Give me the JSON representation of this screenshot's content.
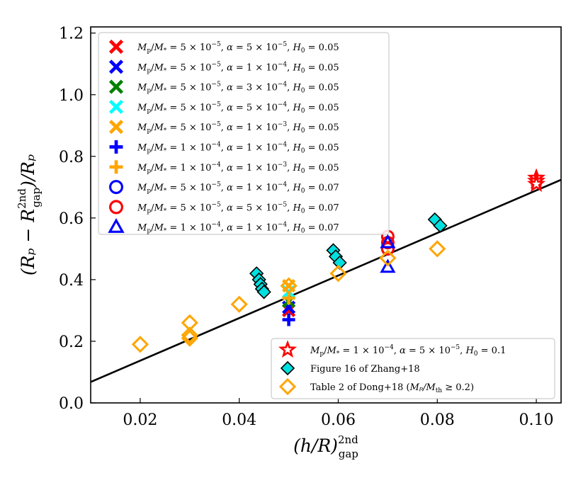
{
  "chart_data": {
    "type": "scatter",
    "xlabel": "(h/R)²ⁿᵈ gap",
    "xlabel_main": "(h/R)",
    "xlabel_sup": "2nd",
    "xlabel_sub": "gap",
    "ylabel_main": "(Rₚ − R",
    "ylabel_sup": "2nd",
    "ylabel_sub": "gap",
    "ylabel_tail": ")/Rₚ",
    "xlim": [
      0.01,
      0.105
    ],
    "ylim": [
      0.0,
      1.22
    ],
    "xticks": [
      "0.02",
      "0.04",
      "0.06",
      "0.08",
      "0.10"
    ],
    "xtick_values": [
      0.02,
      0.04,
      0.06,
      0.08,
      0.1
    ],
    "yticks": [
      "0.0",
      "0.2",
      "0.4",
      "0.6",
      "0.8",
      "1.0",
      "1.2"
    ],
    "ytick_values": [
      0.0,
      0.2,
      0.4,
      0.6,
      0.8,
      1.0,
      1.2
    ],
    "fit_line": {
      "x": [
        0.01,
        0.105
      ],
      "y": [
        0.068,
        0.724
      ]
    },
    "series": [
      {
        "name": "Mp/M* = 5×10⁻⁵, α = 5×10⁻⁵, H0 = 0.05",
        "marker": "x",
        "color": "#ff0000",
        "x": [
          0.05
        ],
        "y": [
          0.3
        ]
      },
      {
        "name": "Mp/M* = 5×10⁻⁵, α = 1×10⁻⁴, H0 = 0.05",
        "marker": "x",
        "color": "#0000ff",
        "x": [
          0.05
        ],
        "y": [
          0.31
        ]
      },
      {
        "name": "Mp/M* = 5×10⁻⁵, α = 3×10⁻⁴, H0 = 0.05",
        "marker": "x",
        "color": "#008000",
        "x": [
          0.05
        ],
        "y": [
          0.33
        ]
      },
      {
        "name": "Mp/M* = 5×10⁻⁵, α = 5×10⁻⁴, H0 = 0.05",
        "marker": "x",
        "color": "#00ffff",
        "x": [
          0.05
        ],
        "y": [
          0.36
        ]
      },
      {
        "name": "Mp/M* = 5×10⁻⁵, α = 1×10⁻³, H0 = 0.05",
        "marker": "x",
        "color": "#ffa500",
        "x": [
          0.05
        ],
        "y": [
          0.38
        ]
      },
      {
        "name": "Mp/M* = 1×10⁻⁴, α = 1×10⁻⁴, H0 = 0.05",
        "marker": "plus",
        "color": "#0000ff",
        "x": [
          0.05
        ],
        "y": [
          0.27
        ]
      },
      {
        "name": "Mp/M* = 1×10⁻⁴, α = 1×10⁻³, H0 = 0.05",
        "marker": "plus",
        "color": "#ffa500",
        "x": [
          0.05
        ],
        "y": [
          0.34
        ]
      },
      {
        "name": "Mp/M* = 5×10⁻⁵, α = 1×10⁻⁴, H0 = 0.07",
        "marker": "circle",
        "color": "#0000ff",
        "x": [
          0.07
        ],
        "y": [
          0.5
        ]
      },
      {
        "name": "Mp/M* = 5×10⁻⁵, α = 5×10⁻⁵, H0 = 0.07",
        "marker": "circle",
        "color": "#ff0000",
        "x": [
          0.07,
          0.07,
          0.07
        ],
        "y": [
          0.54,
          0.52,
          0.5
        ]
      },
      {
        "name": "Mp/M* = 1×10⁻⁴, α = 1×10⁻⁴, H0 = 0.07",
        "marker": "triangle",
        "color": "#0000ff",
        "x": [
          0.07,
          0.07
        ],
        "y": [
          0.44,
          0.52
        ]
      },
      {
        "name": "Mp/M* = 1×10⁻⁴, α = 5×10⁻⁵, H0 = 0.1",
        "marker": "star",
        "color": "#ff0000",
        "x": [
          0.1,
          0.1,
          0.1
        ],
        "y": [
          0.73,
          0.72,
          0.71
        ]
      },
      {
        "name": "Figure 16 of Zhang+18",
        "marker": "diamond-filled",
        "color": "#00e0e0",
        "x": [
          0.0435,
          0.044,
          0.0443,
          0.0446,
          0.045,
          0.059,
          0.0595,
          0.0603,
          0.0795,
          0.0806
        ],
        "y": [
          0.42,
          0.4,
          0.385,
          0.37,
          0.36,
          0.495,
          0.475,
          0.455,
          0.595,
          0.575
        ]
      },
      {
        "name": "Table 2 of Dong+18 (Mp/Mth ≥ 0.2)",
        "marker": "diamond-open",
        "color": "#ffa500",
        "x": [
          0.02,
          0.03,
          0.03,
          0.03,
          0.04,
          0.05,
          0.06,
          0.07,
          0.08
        ],
        "y": [
          0.19,
          0.26,
          0.22,
          0.21,
          0.32,
          0.38,
          0.42,
          0.47,
          0.5
        ]
      }
    ],
    "legend_upper": [
      {
        "marker": "x",
        "color": "#ff0000",
        "mp": "5 × 10",
        "mp_exp": "−5",
        "alpha": "5 × 10",
        "alpha_exp": "−5",
        "h0": "0.05"
      },
      {
        "marker": "x",
        "color": "#0000ff",
        "mp": "5 × 10",
        "mp_exp": "−5",
        "alpha": "1 × 10",
        "alpha_exp": "−4",
        "h0": "0.05"
      },
      {
        "marker": "x",
        "color": "#008000",
        "mp": "5 × 10",
        "mp_exp": "−5",
        "alpha": "3 × 10",
        "alpha_exp": "−4",
        "h0": "0.05"
      },
      {
        "marker": "x",
        "color": "#00ffff",
        "mp": "5 × 10",
        "mp_exp": "−5",
        "alpha": "5 × 10",
        "alpha_exp": "−4",
        "h0": "0.05"
      },
      {
        "marker": "x",
        "color": "#ffa500",
        "mp": "5 × 10",
        "mp_exp": "−5",
        "alpha": "1 × 10",
        "alpha_exp": "−3",
        "h0": "0.05"
      },
      {
        "marker": "plus",
        "color": "#0000ff",
        "mp": "1 × 10",
        "mp_exp": "−4",
        "alpha": "1 × 10",
        "alpha_exp": "−4",
        "h0": "0.05"
      },
      {
        "marker": "plus",
        "color": "#ffa500",
        "mp": "1 × 10",
        "mp_exp": "−4",
        "alpha": "1 × 10",
        "alpha_exp": "−3",
        "h0": "0.05"
      },
      {
        "marker": "circle",
        "color": "#0000ff",
        "mp": "5 × 10",
        "mp_exp": "−5",
        "alpha": "1 × 10",
        "alpha_exp": "−4",
        "h0": "0.07"
      },
      {
        "marker": "circle",
        "color": "#ff0000",
        "mp": "5 × 10",
        "mp_exp": "−5",
        "alpha": "5 × 10",
        "alpha_exp": "−5",
        "h0": "0.07"
      },
      {
        "marker": "triangle",
        "color": "#0000ff",
        "mp": "1 × 10",
        "mp_exp": "−4",
        "alpha": "1 × 10",
        "alpha_exp": "−4",
        "h0": "0.07"
      }
    ],
    "legend_lower": [
      {
        "marker": "star",
        "color": "#ff0000",
        "kind": "param",
        "mp": "1 × 10",
        "mp_exp": "−4",
        "alpha": "5 × 10",
        "alpha_exp": "−5",
        "h0": "0.1"
      },
      {
        "marker": "diamond-filled",
        "color": "#00e0e0",
        "kind": "text",
        "text": "Figure 16 of Zhang+18"
      },
      {
        "marker": "diamond-open",
        "color": "#ffa500",
        "kind": "dong",
        "text": "Table 2 of Dong+18 (",
        "cond": "Mₚ/M",
        "cond_sub": "th",
        "cond_tail": " ≥ 0.2)"
      }
    ]
  }
}
